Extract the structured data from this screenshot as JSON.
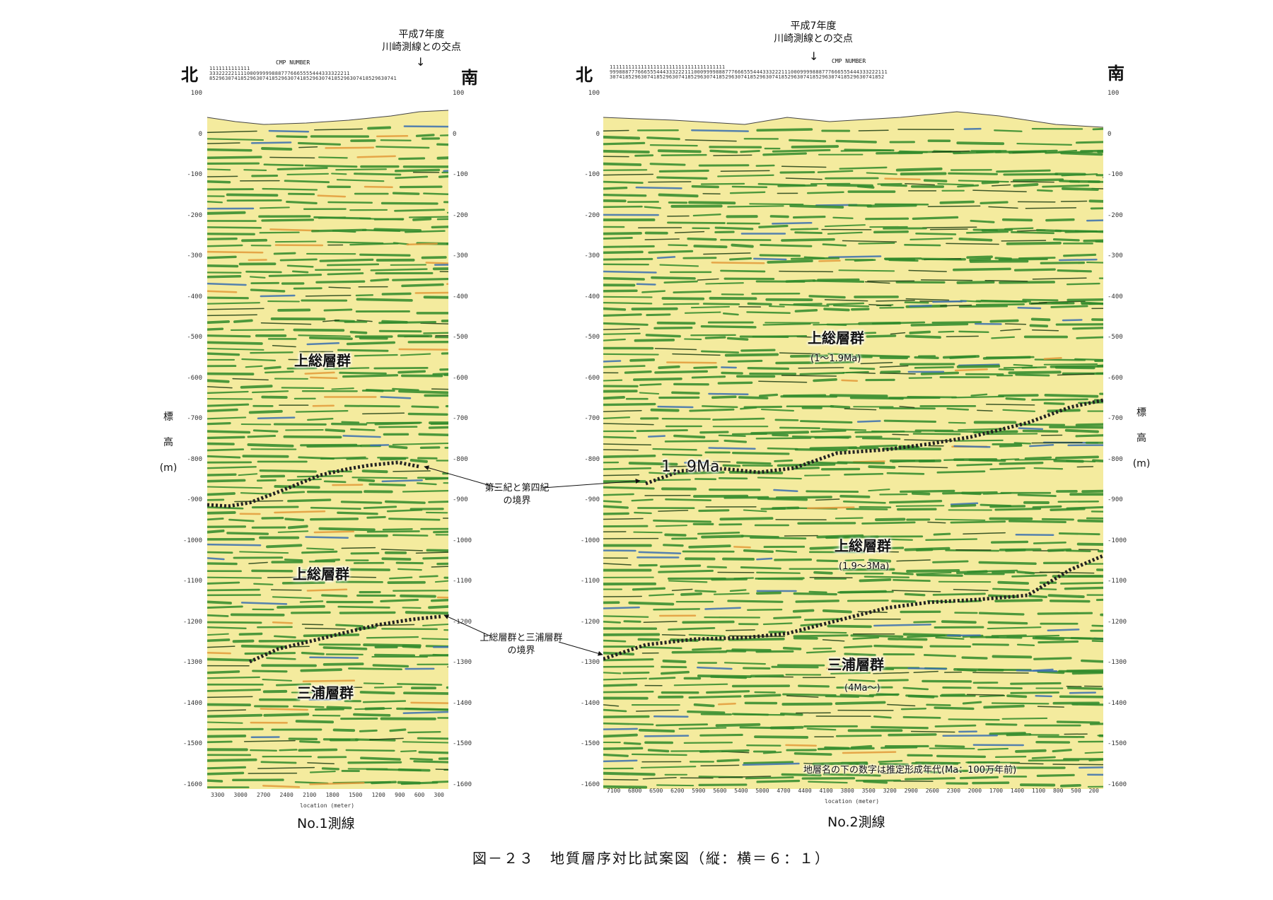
{
  "panel1": {
    "north": "北",
    "south": "南",
    "cmp_title": "CMP NUMBER",
    "cmp_digits": [
      "1111111111111",
      "333222221111000999998887776665555444333322211",
      "852963074185296307418529630741852963074185296307418529630741"
    ],
    "intersection": "平成7年度\n川崎測線との交点",
    "depth_ticks": [
      "100",
      "0",
      "-100",
      "-200",
      "-300",
      "-400",
      "-500",
      "-600",
      "-700",
      "-800",
      "-900",
      "-1000",
      "-1100",
      "-1200",
      "-1300",
      "-1400",
      "-1500",
      "-1600"
    ],
    "x_ticks": [
      "3300",
      "3000",
      "2700",
      "2400",
      "2100",
      "1800",
      "1500",
      "1200",
      "900",
      "600",
      "300"
    ],
    "x_title": "location (meter)",
    "labels": {
      "kazusa_upper": "上総層群",
      "kazusa_lower": "上総層群",
      "miura": "三浦層群"
    },
    "caption": "No.1測線"
  },
  "panel2": {
    "north": "北",
    "south": "南",
    "cmp_title": "CMP NUMBER",
    "cmp_digits": [
      "1111111111111111111111111111111111111",
      "99988877766655544433322211100099998887776665554443332221110009999888777666555444333222111",
      "3074185296307418529630741852963074185296307418529630741852963074185296307418529630741852"
    ],
    "intersection": "平成7年度\n川崎測線との交点",
    "depth_ticks": [
      "100",
      "0",
      "-100",
      "-200",
      "-300",
      "-400",
      "-500",
      "-600",
      "-700",
      "-800",
      "-900",
      "-1000",
      "-1100",
      "-1200",
      "-1300",
      "-1400",
      "-1500",
      "-1600"
    ],
    "x_ticks": [
      "7100",
      "6800",
      "6500",
      "6200",
      "5900",
      "5600",
      "5400",
      "5000",
      "4700",
      "4400",
      "4100",
      "3800",
      "3500",
      "3200",
      "2900",
      "2600",
      "2300",
      "2000",
      "1700",
      "1400",
      "1100",
      "800",
      "500",
      "200"
    ],
    "x_title": "location (meter)",
    "labels": {
      "kazusa_upper": "上総層群",
      "kazusa_upper_age": "(1～1.9Ma)",
      "ma_boundary": "1．9Ma",
      "kazusa_lower": "上総層群",
      "kazusa_lower_age": "(1.9～3Ma)",
      "miura": "三浦層群",
      "miura_age": "(4Ma～)"
    },
    "note": "地層名の下の数字は推定形成年代(Ma：100万年前)",
    "caption": "No.2測線"
  },
  "vertical_axis_label": [
    "標",
    "高",
    "(m)"
  ],
  "annotations": {
    "tertiary_quaternary": "第三紀と第四紀\nの境界",
    "kazusa_miura": "上総層群と三浦層群\nの境界"
  },
  "figure_caption": "図－２３　地質層序対比試案図（縦：横＝６：１）",
  "colors": {
    "background": "#f4eb9e",
    "green": "#2f8a2a",
    "dark": "#1b3d12",
    "red": "#d9473a",
    "blue": "#3a6fb0",
    "orange": "#e39a3a",
    "boundary": "#222222"
  }
}
